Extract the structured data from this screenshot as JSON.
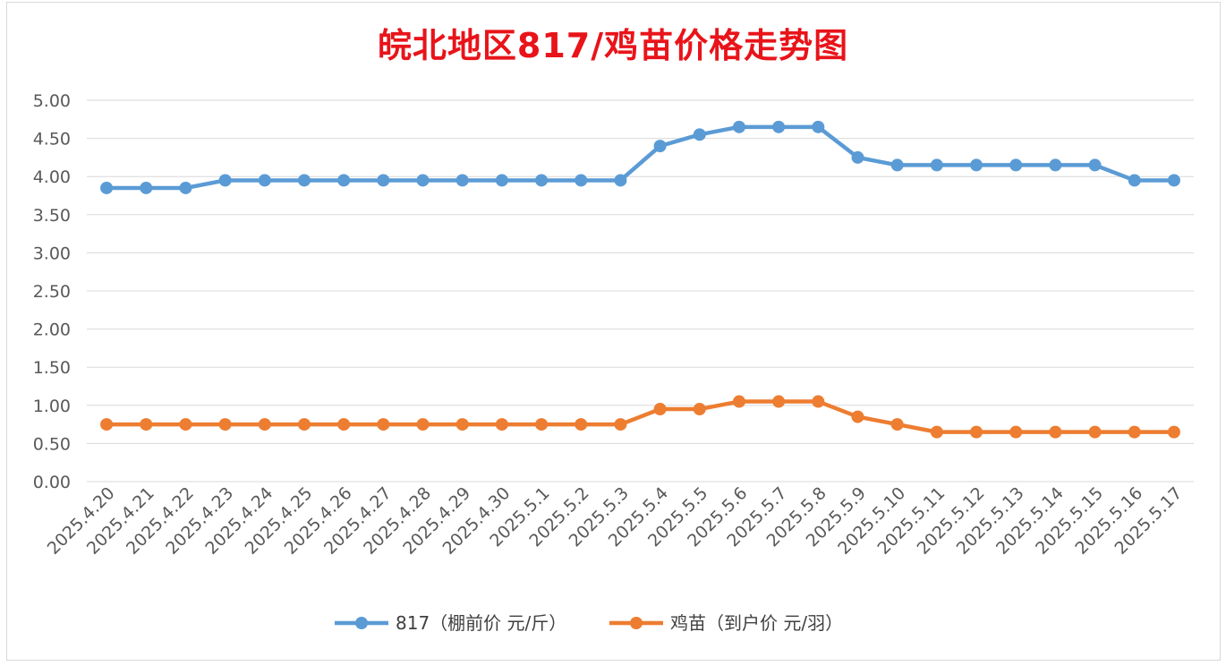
{
  "chart_data": {
    "type": "line",
    "title": "皖北地区817/鸡苗价格走势图",
    "categories": [
      "2025.4.20",
      "2025.4.21",
      "2025.4.22",
      "2025.4.23",
      "2025.4.24",
      "2025.4.25",
      "2025.4.26",
      "2025.4.27",
      "2025.4.28",
      "2025.4.29",
      "2025.4.30",
      "2025.5.1",
      "2025.5.2",
      "2025.5.3",
      "2025.5.4",
      "2025.5.5",
      "2025.5.6",
      "2025.5.7",
      "2025.5.8",
      "2025.5.9",
      "2025.5.10",
      "2025.5.11",
      "2025.5.12",
      "2025.5.13",
      "2025.5.14",
      "2025.5.15",
      "2025.5.16",
      "2025.5.17"
    ],
    "series": [
      {
        "name": "817（棚前价 元/斤）",
        "color": "#5b9bd5",
        "values": [
          3.85,
          3.85,
          3.85,
          3.95,
          3.95,
          3.95,
          3.95,
          3.95,
          3.95,
          3.95,
          3.95,
          3.95,
          3.95,
          3.95,
          4.4,
          4.55,
          4.65,
          4.65,
          4.65,
          4.25,
          4.15,
          4.15,
          4.15,
          4.15,
          4.15,
          4.15,
          3.95,
          3.95
        ]
      },
      {
        "name": "鸡苗（到户价 元/羽）",
        "color": "#ed7d31",
        "values": [
          0.75,
          0.75,
          0.75,
          0.75,
          0.75,
          0.75,
          0.75,
          0.75,
          0.75,
          0.75,
          0.75,
          0.75,
          0.75,
          0.75,
          0.95,
          0.95,
          1.05,
          1.05,
          1.05,
          0.85,
          0.75,
          0.65,
          0.65,
          0.65,
          0.65,
          0.65,
          0.65,
          0.65
        ]
      }
    ],
    "ylim": [
      0,
      5
    ],
    "yticks": [
      "0.00",
      "0.50",
      "1.00",
      "1.50",
      "2.00",
      "2.50",
      "3.00",
      "3.50",
      "4.00",
      "4.50",
      "5.00"
    ],
    "grid": true,
    "legend_position": "bottom"
  }
}
